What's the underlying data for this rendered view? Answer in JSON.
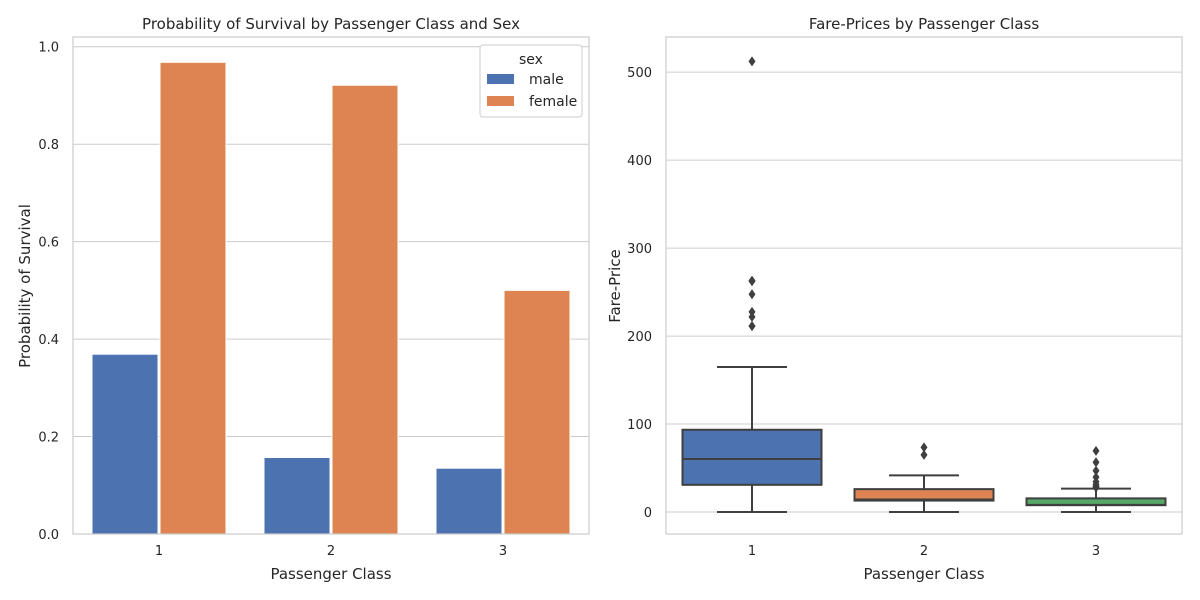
{
  "chart_data": [
    {
      "type": "bar",
      "title": "Probability of Survival by Passenger Class and Sex",
      "xlabel": "Passenger Class",
      "ylabel": "Probability of Survival",
      "categories": [
        "1",
        "2",
        "3"
      ],
      "series": [
        {
          "name": "male",
          "color": "#4c72b0",
          "values": [
            0.369,
            0.157,
            0.135
          ]
        },
        {
          "name": "female",
          "color": "#dd8452",
          "values": [
            0.968,
            0.921,
            0.5
          ]
        }
      ],
      "ylim": [
        0,
        1.02
      ],
      "yticks": [
        0.0,
        0.2,
        0.4,
        0.6,
        0.8,
        1.0
      ],
      "ytick_labels": [
        "0.0",
        "0.2",
        "0.4",
        "0.6",
        "0.8",
        "1.0"
      ],
      "grid": true,
      "legend": {
        "title": "sex",
        "placement": "top-right"
      }
    },
    {
      "type": "box",
      "title": "Fare-Prices by Passenger Class",
      "xlabel": "Passenger Class",
      "ylabel": "Fare-Price",
      "categories": [
        "1",
        "2",
        "3"
      ],
      "boxes": [
        {
          "category": "1",
          "color": "#4c72b0",
          "whisker_low": 0,
          "q1": 30.9,
          "median": 60.3,
          "q3": 93.5,
          "whisker_high": 164.9,
          "outliers": [
            211.3,
            211.5,
            221.8,
            227.5,
            247.5,
            262.4,
            263.0,
            512.3
          ]
        },
        {
          "category": "2",
          "color": "#dd8452",
          "whisker_low": 0,
          "q1": 13.0,
          "median": 14.25,
          "q3": 26.0,
          "whisker_high": 41.6,
          "outliers": [
            65.0,
            73.5
          ]
        },
        {
          "category": "3",
          "color": "#55a868",
          "whisker_low": 0,
          "q1": 7.75,
          "median": 8.05,
          "q3": 15.5,
          "whisker_high": 26.6,
          "outliers": [
            27.9,
            29.1,
            31.3,
            34.4,
            39.7,
            46.9,
            56.5,
            69.55
          ]
        }
      ],
      "ylim": [
        -25,
        540
      ],
      "yticks": [
        0,
        100,
        200,
        300,
        400,
        500
      ],
      "ytick_labels": [
        "0",
        "100",
        "200",
        "300",
        "400",
        "500"
      ],
      "grid": true
    }
  ]
}
